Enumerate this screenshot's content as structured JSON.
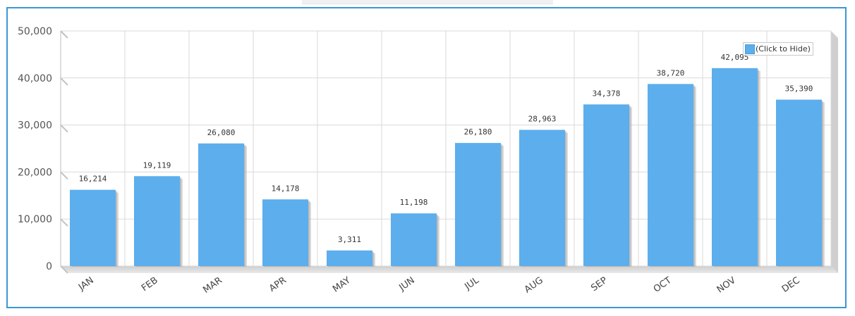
{
  "chart_data": {
    "type": "bar",
    "categories": [
      "JAN",
      "FEB",
      "MAR",
      "APR",
      "MAY",
      "JUN",
      "JUL",
      "AUG",
      "SEP",
      "OCT",
      "NOV",
      "DEC"
    ],
    "values": [
      16214,
      19119,
      26080,
      14178,
      3311,
      11198,
      26180,
      28963,
      34378,
      38720,
      42095,
      35390
    ],
    "value_labels": [
      "16,214",
      "19,119",
      "26,080",
      "14,178",
      "3,311",
      "11,198",
      "26,180",
      "28,963",
      "34,378",
      "38,720",
      "42,095",
      "35,390"
    ],
    "y_ticks": [
      0,
      10000,
      20000,
      30000,
      40000,
      50000
    ],
    "y_tick_labels": [
      "0",
      "10,000",
      "20,000",
      "30,000",
      "40,000",
      "50,000"
    ],
    "ylim": [
      0,
      50000
    ],
    "title": "",
    "xlabel": "",
    "ylabel": "",
    "grid": true,
    "legend_position": "top-right",
    "bar_color": "#5caeed",
    "grid_color": "#d9d9d9",
    "frame_color": "#3a98d4"
  },
  "legend": {
    "label": "(Click to Hide)"
  }
}
